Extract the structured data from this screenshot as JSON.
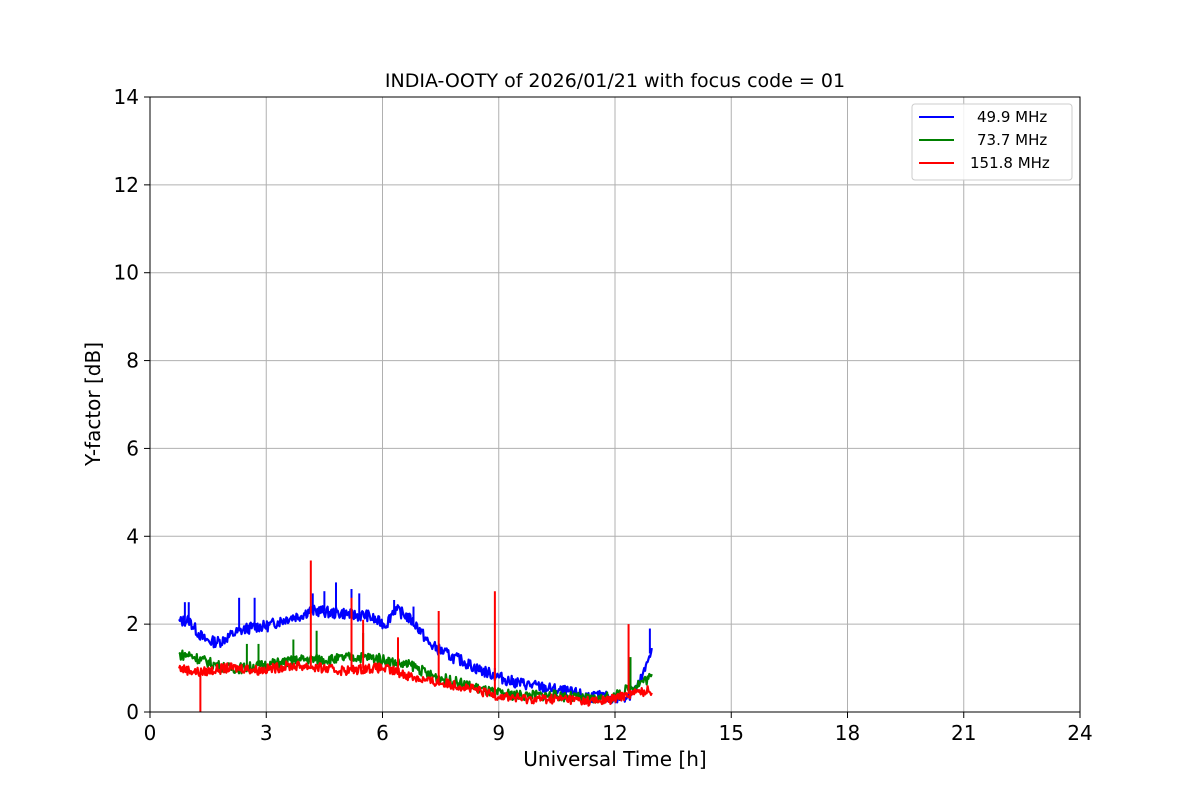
{
  "chart_data": {
    "type": "line",
    "title": "INDIA-OOTY of 2026/01/21 with focus code = 01",
    "xlabel": "Universal Time [h]",
    "ylabel": "Y-factor [dB]",
    "xlim": [
      0,
      24
    ],
    "ylim": [
      0,
      14
    ],
    "xticks": [
      0,
      3,
      6,
      9,
      12,
      15,
      18,
      21,
      24
    ],
    "yticks": [
      0,
      2,
      4,
      6,
      8,
      10,
      12,
      14
    ],
    "grid": true,
    "legend_position": "top-right",
    "series": [
      {
        "name": "49.9 MHz",
        "color": "#0000ff",
        "x": [
          0.75,
          1.0,
          1.2,
          1.4,
          1.6,
          1.8,
          2.0,
          2.2,
          2.5,
          2.8,
          3.0,
          3.3,
          3.6,
          3.9,
          4.1,
          4.4,
          4.7,
          5.0,
          5.3,
          5.6,
          5.9,
          6.1,
          6.3,
          6.6,
          6.9,
          7.2,
          7.5,
          7.8,
          8.1,
          8.4,
          8.7,
          9.0,
          9.3,
          9.6,
          9.9,
          10.2,
          10.5,
          10.8,
          11.1,
          11.4,
          11.7,
          12.0,
          12.2,
          12.4,
          12.6,
          12.8,
          12.95
        ],
        "y": [
          2.05,
          2.1,
          1.85,
          1.65,
          1.6,
          1.6,
          1.7,
          1.8,
          1.9,
          1.95,
          1.95,
          2.05,
          2.15,
          2.2,
          2.3,
          2.3,
          2.25,
          2.25,
          2.2,
          2.2,
          2.05,
          2.0,
          2.35,
          2.2,
          1.95,
          1.55,
          1.4,
          1.25,
          1.15,
          1.0,
          0.9,
          0.8,
          0.7,
          0.65,
          0.6,
          0.55,
          0.5,
          0.45,
          0.4,
          0.35,
          0.35,
          0.3,
          0.35,
          0.4,
          0.6,
          1.0,
          1.5
        ],
        "spikes": [
          [
            0.9,
            2.5
          ],
          [
            1.0,
            2.5
          ],
          [
            2.3,
            2.6
          ],
          [
            2.7,
            2.6
          ],
          [
            4.2,
            2.7
          ],
          [
            4.5,
            2.75
          ],
          [
            4.8,
            2.95
          ],
          [
            5.2,
            2.8
          ],
          [
            5.4,
            2.7
          ],
          [
            6.3,
            2.55
          ],
          [
            6.8,
            2.4
          ],
          [
            8.9,
            1.0
          ],
          [
            12.9,
            1.9
          ]
        ]
      },
      {
        "name": "73.7 MHz",
        "color": "#008000",
        "x": [
          0.75,
          1.0,
          1.3,
          1.6,
          2.0,
          2.4,
          2.8,
          3.2,
          3.6,
          4.0,
          4.4,
          4.8,
          5.2,
          5.6,
          6.0,
          6.4,
          6.8,
          7.2,
          7.6,
          8.0,
          8.4,
          8.8,
          9.2,
          9.6,
          10.0,
          10.4,
          10.8,
          11.2,
          11.6,
          12.0,
          12.3,
          12.6,
          12.95
        ],
        "y": [
          1.3,
          1.3,
          1.2,
          1.1,
          1.0,
          1.0,
          1.05,
          1.1,
          1.15,
          1.2,
          1.2,
          1.2,
          1.25,
          1.25,
          1.2,
          1.1,
          1.05,
          0.85,
          0.75,
          0.65,
          0.55,
          0.45,
          0.4,
          0.38,
          0.38,
          0.38,
          0.35,
          0.3,
          0.3,
          0.35,
          0.5,
          0.65,
          0.8
        ],
        "spikes": [
          [
            2.5,
            1.55
          ],
          [
            2.8,
            1.55
          ],
          [
            3.7,
            1.65
          ],
          [
            4.3,
            1.85
          ],
          [
            5.5,
            1.8
          ],
          [
            12.4,
            1.25
          ]
        ]
      },
      {
        "name": "151.8 MHz",
        "color": "#ff0000",
        "x": [
          0.75,
          1.0,
          1.3,
          1.6,
          2.0,
          2.4,
          2.8,
          3.2,
          3.6,
          4.0,
          4.4,
          4.8,
          5.2,
          5.6,
          6.0,
          6.4,
          6.8,
          7.2,
          7.6,
          8.0,
          8.4,
          8.8,
          9.2,
          9.6,
          10.0,
          10.4,
          10.8,
          11.2,
          11.6,
          12.0,
          12.3,
          12.6,
          12.95
        ],
        "y": [
          1.0,
          0.95,
          0.9,
          0.95,
          1.0,
          1.0,
          0.95,
          1.0,
          1.05,
          1.05,
          1.0,
          0.95,
          0.95,
          1.0,
          1.0,
          0.9,
          0.8,
          0.7,
          0.65,
          0.6,
          0.5,
          0.4,
          0.35,
          0.3,
          0.3,
          0.3,
          0.3,
          0.25,
          0.25,
          0.3,
          0.4,
          0.45,
          0.5
        ],
        "spikes": [
          [
            1.3,
            0.0
          ],
          [
            4.15,
            3.45
          ],
          [
            5.2,
            2.6
          ],
          [
            5.5,
            2.1
          ],
          [
            6.4,
            1.7
          ],
          [
            7.45,
            2.3
          ],
          [
            8.9,
            2.75
          ],
          [
            12.35,
            2.0
          ]
        ]
      }
    ]
  }
}
